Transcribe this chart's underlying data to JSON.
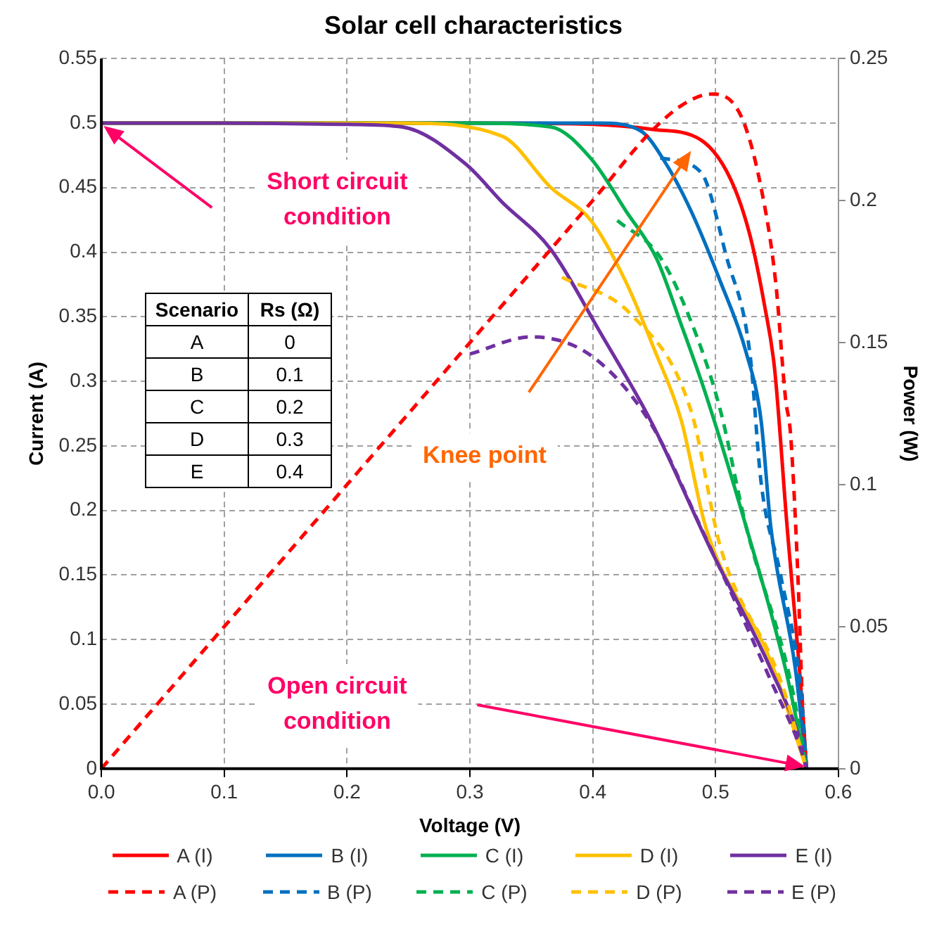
{
  "chart_data": {
    "type": "line",
    "title": "Solar cell characteristics",
    "xlabel": "Voltage (V)",
    "ylabel": "Current (A)",
    "y2label": "Power (W)",
    "xlim": [
      0,
      0.6
    ],
    "xticks": [
      {
        "value": 0,
        "label": "0.0"
      },
      {
        "value": 0.1,
        "label": "0.1"
      },
      {
        "value": 0.2,
        "label": "0.2"
      },
      {
        "value": 0.3,
        "label": "0.3"
      },
      {
        "value": 0.4,
        "label": "0.4"
      },
      {
        "value": 0.5,
        "label": "0.5"
      },
      {
        "value": 0.6,
        "label": "0.6"
      }
    ],
    "ylim": [
      0,
      0.55
    ],
    "yticks": [
      0,
      0.05,
      0.1,
      0.15,
      0.2,
      0.25,
      0.3,
      0.35,
      0.4,
      0.45,
      0.5,
      0.55
    ],
    "y2lim": [
      0,
      0.25
    ],
    "y2ticks": [
      0,
      0.05,
      0.1,
      0.15,
      0.2,
      0.25
    ],
    "grid": true,
    "legend": "bottom",
    "marker": "none",
    "series": [
      {
        "name": "A (I)",
        "color": "#ff0000",
        "line_style": "solid",
        "x": [
          0,
          0.3,
          0.4,
          0.45,
          0.488,
          0.512,
          0.528,
          0.54,
          0.548,
          0.558,
          0.571,
          0.574
        ],
        "values": [
          0.5,
          0.5,
          0.499,
          0.495,
          0.487,
          0.457,
          0.413,
          0.358,
          0.31,
          0.19,
          0.044,
          0
        ]
      },
      {
        "name": "B (I)",
        "color": "#0070c0",
        "line_style": "solid",
        "x": [
          0,
          0.3,
          0.406,
          0.439,
          0.46,
          0.48,
          0.504,
          0.525,
          0.537,
          0.545,
          0.565,
          0.574
        ],
        "values": [
          0.5,
          0.5,
          0.5,
          0.494,
          0.468,
          0.432,
          0.377,
          0.322,
          0.27,
          0.187,
          0.077,
          0
        ]
      },
      {
        "name": "C (I)",
        "color": "#00b050",
        "line_style": "solid",
        "x": [
          0,
          0.3,
          0.366,
          0.399,
          0.427,
          0.452,
          0.472,
          0.492,
          0.525,
          0.557,
          0.574
        ],
        "values": [
          0.5,
          0.5,
          0.497,
          0.472,
          0.432,
          0.395,
          0.344,
          0.29,
          0.187,
          0.077,
          0
        ]
      },
      {
        "name": "D (I)",
        "color": "#ffc000",
        "line_style": "solid",
        "x": [
          0,
          0.2,
          0.245,
          0.326,
          0.366,
          0.399,
          0.427,
          0.45,
          0.472,
          0.492,
          0.545,
          0.574
        ],
        "values": [
          0.5,
          0.5,
          0.5,
          0.49,
          0.45,
          0.424,
          0.377,
          0.325,
          0.27,
          0.187,
          0.083,
          0
        ]
      },
      {
        "name": "E (I)",
        "color": "#7030a0",
        "line_style": "solid",
        "x": [
          0,
          0.1,
          0.2,
          0.245,
          0.297,
          0.326,
          0.366,
          0.406,
          0.448,
          0.497,
          0.545,
          0.571,
          0.574
        ],
        "values": [
          0.5,
          0.5,
          0.499,
          0.497,
          0.468,
          0.439,
          0.402,
          0.338,
          0.268,
          0.168,
          0.077,
          0.014,
          0
        ]
      },
      {
        "name": "A (P)",
        "color": "#ff0000",
        "line_style": "dashed",
        "axis": "y2",
        "x": [
          0,
          0.1,
          0.2,
          0.3,
          0.4,
          0.448,
          0.476,
          0.497,
          0.521,
          0.537,
          0.549,
          0.557,
          0.561,
          0.567,
          0.571,
          0.574
        ],
        "values": [
          0,
          0.05,
          0.1,
          0.15,
          0.2,
          0.2245,
          0.2345,
          0.2375,
          0.2295,
          0.2046,
          0.171,
          0.13,
          0.118,
          0.068,
          0.02,
          0
        ]
      },
      {
        "name": "B (P)",
        "color": "#0070c0",
        "line_style": "dashed",
        "axis": "y2",
        "x": [
          0.455,
          0.488,
          0.509,
          0.528,
          0.537,
          0.553,
          0.57,
          0.574
        ],
        "values": [
          0.215,
          0.21,
          0.18,
          0.146,
          0.101,
          0.068,
          0.025,
          0
        ]
      },
      {
        "name": "C (P)",
        "color": "#00b050",
        "line_style": "dashed",
        "axis": "y2",
        "x": [
          0.42,
          0.455,
          0.484,
          0.504,
          0.525,
          0.561,
          0.574
        ],
        "values": [
          0.193,
          0.18,
          0.153,
          0.126,
          0.085,
          0.031,
          0
        ]
      },
      {
        "name": "D (P)",
        "color": "#ffc000",
        "line_style": "dashed",
        "axis": "y2",
        "x": [
          0.375,
          0.431,
          0.48,
          0.504,
          0.553,
          0.574
        ],
        "values": [
          0.173,
          0.16,
          0.126,
          0.078,
          0.031,
          0
        ]
      },
      {
        "name": "E (P)",
        "color": "#7030a0",
        "line_style": "dashed",
        "axis": "y2",
        "x": [
          0.3,
          0.35,
          0.4,
          0.448,
          0.488,
          0.545,
          0.57,
          0.574
        ],
        "values": [
          0.146,
          0.152,
          0.145,
          0.121,
          0.085,
          0.031,
          0.006,
          0
        ]
      }
    ],
    "annotations": [
      "Short circuit condition",
      "Open circuit condition",
      "Knee point",
      "Scenario",
      "Rs (Ω)",
      "A",
      "0",
      "B",
      "0.1",
      "C",
      "0.2",
      "D",
      "0.3",
      "E",
      "0.4"
    ]
  }
}
